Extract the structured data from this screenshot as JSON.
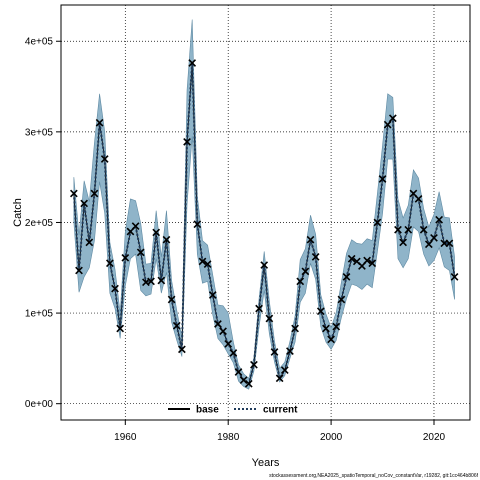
{
  "chart_data": {
    "type": "line",
    "xlabel": "Years",
    "ylabel": "Catch",
    "xlim": [
      1947.5,
      2027
    ],
    "ylim": [
      -18000,
      440000
    ],
    "xticks": [
      1960,
      1980,
      2000,
      2020
    ],
    "yticks": [
      0,
      100000,
      200000,
      300000,
      400000
    ],
    "ytick_labels": [
      "0e+00",
      "1e+05",
      "2e+05",
      "3e+05",
      "4e+05"
    ],
    "grid": true,
    "legend": {
      "placement": "bottom-center",
      "entries": [
        "base",
        "current"
      ]
    },
    "colors": {
      "band": "#8fb4c9",
      "band_edge": "#5f8aa3",
      "current_line": "#1f3a5a",
      "base_line": "#000000"
    },
    "footer": "stockassessment.org,NEA2025_spatioTemporal_noCov_constantVar, r19282, git:1cc464b806f",
    "years": [
      1950,
      1951,
      1952,
      1953,
      1954,
      1955,
      1956,
      1957,
      1958,
      1959,
      1960,
      1961,
      1962,
      1963,
      1964,
      1965,
      1966,
      1967,
      1968,
      1969,
      1970,
      1971,
      1972,
      1973,
      1974,
      1975,
      1976,
      1977,
      1978,
      1979,
      1980,
      1981,
      1982,
      1983,
      1984,
      1985,
      1986,
      1987,
      1988,
      1989,
      1990,
      1991,
      1992,
      1993,
      1994,
      1995,
      1996,
      1997,
      1998,
      1999,
      2000,
      2001,
      2002,
      2003,
      2004,
      2005,
      2006,
      2007,
      2008,
      2009,
      2010,
      2011,
      2012,
      2013,
      2014,
      2015,
      2016,
      2017,
      2018,
      2019,
      2020,
      2021,
      2022,
      2023,
      2024
    ],
    "series": [
      {
        "name": "base",
        "type": "line",
        "values": [
          232000,
          147000,
          221000,
          178000,
          232000,
          310000,
          270000,
          155000,
          127000,
          83000,
          161000,
          190000,
          196000,
          167000,
          134000,
          135000,
          189000,
          136000,
          181000,
          115000,
          86000,
          60000,
          289000,
          376000,
          198000,
          157000,
          154000,
          120000,
          88000,
          80000,
          66000,
          56000,
          35000,
          26000,
          22000,
          43000,
          105000,
          153000,
          94000,
          57000,
          28000,
          37000,
          58000,
          83000,
          135000,
          146000,
          181000,
          162000,
          102000,
          83000,
          71000,
          85000,
          115000,
          140000,
          160000,
          157000,
          152000,
          158000,
          155000,
          200000,
          248000,
          308000,
          315000,
          192000,
          178000,
          192000,
          232000,
          226000,
          192000,
          176000,
          183000,
          203000,
          177000,
          177000,
          140000
        ]
      },
      {
        "name": "current",
        "type": "dotted-line",
        "values": [
          232000,
          147000,
          221000,
          178000,
          232000,
          310000,
          270000,
          155000,
          127000,
          83000,
          161000,
          190000,
          196000,
          167000,
          134000,
          135000,
          189000,
          136000,
          181000,
          115000,
          86000,
          60000,
          289000,
          376000,
          198000,
          157000,
          154000,
          120000,
          88000,
          80000,
          66000,
          56000,
          35000,
          26000,
          22000,
          43000,
          105000,
          153000,
          94000,
          57000,
          28000,
          37000,
          58000,
          83000,
          135000,
          146000,
          181000,
          162000,
          102000,
          83000,
          71000,
          85000,
          115000,
          140000,
          160000,
          157000,
          152000,
          158000,
          155000,
          200000,
          248000,
          308000,
          315000,
          192000,
          178000,
          192000,
          232000,
          226000,
          192000,
          176000,
          183000,
          203000,
          177000,
          177000,
          140000
        ]
      }
    ],
    "observed_catch": [
      232000,
      147000,
      221000,
      178000,
      232000,
      310000,
      270000,
      155000,
      127000,
      83000,
      161000,
      190000,
      196000,
      167000,
      134000,
      135000,
      189000,
      136000,
      181000,
      115000,
      86000,
      60000,
      289000,
      376000,
      198000,
      157000,
      154000,
      120000,
      88000,
      80000,
      66000,
      56000,
      35000,
      26000,
      22000,
      43000,
      105000,
      153000,
      94000,
      57000,
      28000,
      37000,
      58000,
      83000,
      135000,
      146000,
      181000,
      162000,
      102000,
      83000,
      71000,
      85000,
      115000,
      140000,
      160000,
      157000,
      152000,
      158000,
      155000,
      200000,
      248000,
      308000,
      315000,
      192000,
      178000,
      192000,
      232000,
      226000,
      192000,
      176000,
      183000,
      203000,
      177000,
      177000,
      140000
    ],
    "confidence_band": {
      "lower": [
        200000,
        123000,
        140000,
        150000,
        180000,
        245000,
        210000,
        122000,
        105000,
        72000,
        130000,
        160000,
        165000,
        125000,
        119000,
        121000,
        160000,
        122000,
        145000,
        90000,
        70000,
        52000,
        220000,
        295000,
        165000,
        133000,
        135000,
        98000,
        72000,
        65000,
        55000,
        45000,
        25000,
        19000,
        16000,
        36000,
        85000,
        125000,
        77000,
        46000,
        24000,
        31000,
        50000,
        68000,
        112000,
        122000,
        155000,
        137000,
        85000,
        68000,
        60000,
        70000,
        95000,
        116000,
        132000,
        130000,
        126000,
        132000,
        128000,
        168000,
        210000,
        270000,
        270000,
        160000,
        150000,
        160000,
        195000,
        190000,
        165000,
        152000,
        158000,
        172000,
        151000,
        147000,
        115000
      ],
      "upper": [
        250000,
        186000,
        246000,
        223000,
        288000,
        342000,
        300000,
        178000,
        148000,
        100000,
        190000,
        226000,
        224000,
        199000,
        154000,
        155000,
        213000,
        162000,
        213000,
        136000,
        103000,
        73000,
        346000,
        424000,
        229000,
        180000,
        175000,
        142000,
        109000,
        108000,
        100000,
        68000,
        43000,
        33000,
        28000,
        51000,
        116000,
        168000,
        113000,
        69000,
        39000,
        46000,
        69000,
        97000,
        159000,
        171000,
        208000,
        187000,
        120000,
        99000,
        84000,
        101000,
        134000,
        166000,
        181000,
        177000,
        176000,
        182000,
        180000,
        232000,
        285000,
        342000,
        338000,
        226000,
        205000,
        219000,
        258000,
        249000,
        215000,
        195000,
        209000,
        234000,
        206000,
        205000,
        162000
      ]
    }
  }
}
